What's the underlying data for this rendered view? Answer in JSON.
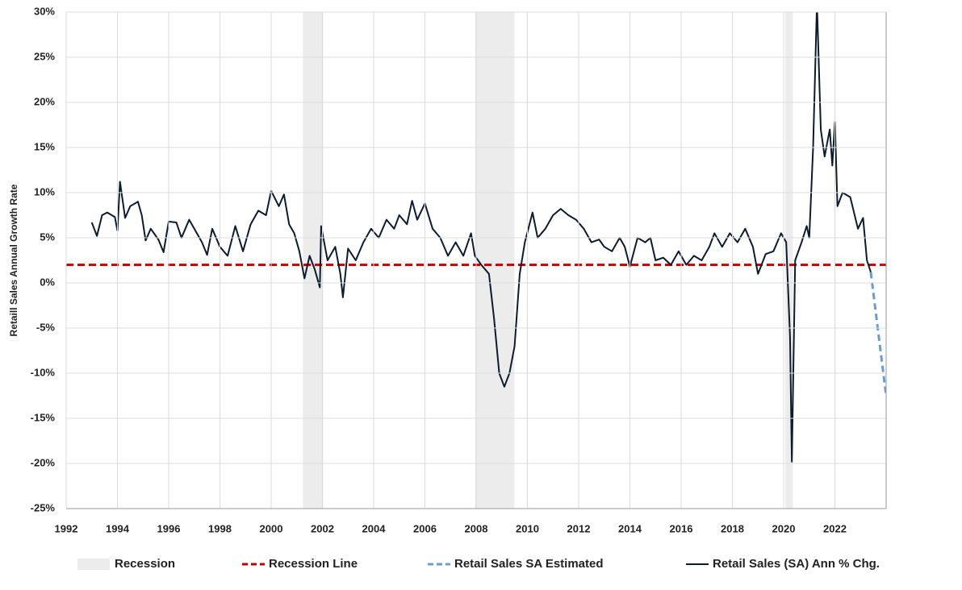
{
  "chart_data": {
    "type": "line",
    "y_label": "Retaill Sales Annual Growth Rate",
    "xlim": [
      1992,
      2024
    ],
    "xticks": [
      1992,
      1994,
      1996,
      1998,
      2000,
      2002,
      2004,
      2006,
      2008,
      2010,
      2012,
      2014,
      2016,
      2018,
      2020,
      2022
    ],
    "ylim": [
      -25,
      30
    ],
    "yticks": [
      {
        "value": -25,
        "label": "-25%"
      },
      {
        "value": -20,
        "label": "-20%"
      },
      {
        "value": -15,
        "label": "-15%"
      },
      {
        "value": -10,
        "label": "-10%"
      },
      {
        "value": -5,
        "label": "-5%"
      },
      {
        "value": 0,
        "label": "0%"
      },
      {
        "value": 5,
        "label": "5%"
      },
      {
        "value": 10,
        "label": "10%"
      },
      {
        "value": 15,
        "label": "15%"
      },
      {
        "value": 20,
        "label": "20%"
      },
      {
        "value": 25,
        "label": "25%"
      },
      {
        "value": 30,
        "label": "30%"
      }
    ],
    "grid": true,
    "recessions": {
      "name": "Recession",
      "color": "#ececec",
      "periods": [
        [
          2001.24,
          2002.03
        ],
        [
          2007.97,
          2009.49
        ],
        [
          2020.07,
          2020.36
        ]
      ]
    },
    "recession_line": {
      "name": "Recession Line",
      "value": 2,
      "color": "#c00000"
    },
    "series": [
      {
        "name": "Retail Sales SA Estimated",
        "color": "#6a9ccf",
        "dashed": true,
        "x": [
          2023.4,
          2024.0
        ],
        "values": [
          1.2,
          -12.5
        ]
      },
      {
        "name": "Retail Sales (SA) Ann % Chg.",
        "color": "#0d1b2e",
        "dashed": false,
        "x": [
          1993.0,
          1993.2,
          1993.4,
          1993.6,
          1993.9,
          1994.0,
          1994.1,
          1994.3,
          1994.5,
          1994.8,
          1994.95,
          1995.1,
          1995.3,
          1995.6,
          1995.8,
          1996.0,
          1996.3,
          1996.5,
          1996.8,
          1997.0,
          1997.3,
          1997.5,
          1997.7,
          1998.0,
          1998.3,
          1998.6,
          1998.9,
          1999.2,
          1999.5,
          1999.8,
          2000.0,
          2000.3,
          2000.5,
          2000.7,
          2000.9,
          2001.1,
          2001.3,
          2001.5,
          2001.7,
          2001.9,
          2001.95,
          2002.2,
          2002.5,
          2002.7,
          2002.8,
          2003.0,
          2003.3,
          2003.6,
          2003.9,
          2004.2,
          2004.5,
          2004.8,
          2005.0,
          2005.3,
          2005.5,
          2005.7,
          2006.0,
          2006.3,
          2006.6,
          2006.9,
          2007.2,
          2007.5,
          2007.8,
          2007.95,
          2008.2,
          2008.5,
          2008.7,
          2008.9,
          2009.1,
          2009.3,
          2009.5,
          2009.7,
          2009.9,
          2010.2,
          2010.4,
          2010.7,
          2011.0,
          2011.3,
          2011.6,
          2011.9,
          2012.2,
          2012.5,
          2012.8,
          2013.0,
          2013.3,
          2013.6,
          2013.8,
          2014.0,
          2014.3,
          2014.6,
          2014.8,
          2015.0,
          2015.3,
          2015.6,
          2015.9,
          2016.2,
          2016.5,
          2016.8,
          2017.1,
          2017.3,
          2017.6,
          2017.9,
          2018.2,
          2018.5,
          2018.8,
          2019.0,
          2019.3,
          2019.6,
          2019.9,
          2020.1,
          2020.25,
          2020.32,
          2020.45,
          2020.7,
          2020.9,
          2021.0,
          2021.15,
          2021.3,
          2021.45,
          2021.6,
          2021.8,
          2021.9,
          2022.0,
          2022.1,
          2022.3,
          2022.6,
          2022.9,
          2023.1,
          2023.25,
          2023.4
        ],
        "values": [
          6.7,
          5.2,
          7.5,
          7.8,
          7.3,
          5.8,
          11.2,
          7.2,
          8.5,
          9.0,
          7.5,
          4.7,
          6.0,
          4.8,
          3.4,
          6.8,
          6.7,
          5.0,
          7.0,
          6.0,
          4.5,
          3.1,
          6.0,
          4.0,
          3.0,
          6.3,
          3.5,
          6.5,
          8.0,
          7.5,
          10.2,
          8.5,
          9.8,
          6.5,
          5.5,
          3.5,
          0.5,
          3.0,
          1.5,
          -0.5,
          6.3,
          2.5,
          4.0,
          1.0,
          -1.6,
          3.8,
          2.5,
          4.5,
          6.0,
          5.0,
          7.0,
          6.0,
          7.5,
          6.5,
          9.1,
          7.0,
          8.8,
          6.0,
          5.0,
          3.0,
          4.5,
          3.0,
          5.5,
          3.0,
          2.0,
          1.0,
          -4.0,
          -10.0,
          -11.5,
          -10.0,
          -7.0,
          1.0,
          4.5,
          7.8,
          5.0,
          6.0,
          7.5,
          8.2,
          7.5,
          7.0,
          6.0,
          4.5,
          4.8,
          4.0,
          3.5,
          5.0,
          4.0,
          1.8,
          5.0,
          4.5,
          5.0,
          2.5,
          2.8,
          2.0,
          3.5,
          2.0,
          3.0,
          2.5,
          4.0,
          5.5,
          4.0,
          5.5,
          4.5,
          6.0,
          4.0,
          1.0,
          3.2,
          3.5,
          5.5,
          4.5,
          -6.0,
          -19.8,
          2.5,
          4.5,
          6.3,
          5.0,
          15.0,
          31.0,
          17.0,
          14.0,
          17.0,
          13.0,
          17.8,
          8.5,
          10.0,
          9.5,
          6.0,
          7.2,
          2.5,
          1.2
        ]
      }
    ]
  }
}
